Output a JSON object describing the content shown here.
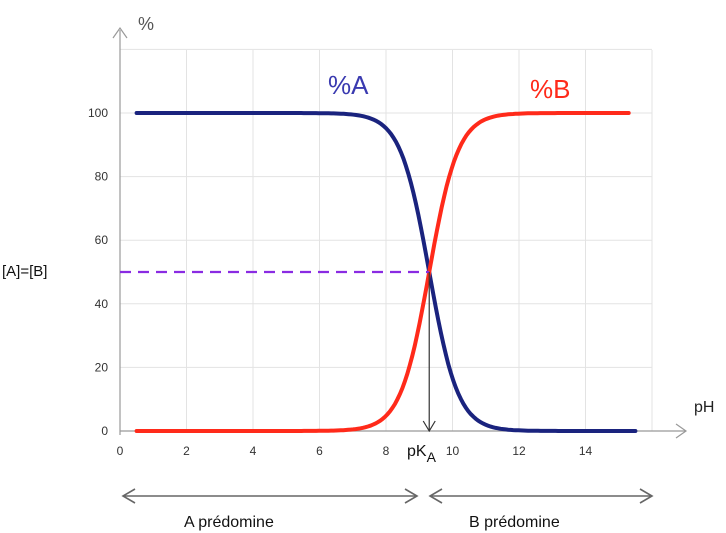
{
  "chart_data": {
    "type": "line",
    "ylabel": "%",
    "xlabel": "pH",
    "xlim": [
      0,
      16
    ],
    "ylim": [
      0,
      100
    ],
    "x_ticks": [
      0,
      2,
      4,
      6,
      8,
      10,
      12,
      14
    ],
    "y_ticks": [
      0,
      20,
      40,
      60,
      80,
      100
    ],
    "grid": true,
    "series": [
      {
        "name": "%A",
        "color": "#1a237e",
        "pKa": 9.3,
        "x_range": [
          0.5,
          15.5
        ]
      },
      {
        "name": "%B",
        "color": "#ff2a1a",
        "pKa": 9.3,
        "x_range": [
          0.5,
          15.3
        ]
      }
    ],
    "annotations": {
      "equal_label": "[A]=[B]",
      "equal_y": 50,
      "pka_x": 9.3,
      "pka_main": "pK",
      "pka_sub": "A"
    },
    "regions": [
      {
        "label": "A prédomine"
      },
      {
        "label": "B prédomine"
      }
    ]
  }
}
